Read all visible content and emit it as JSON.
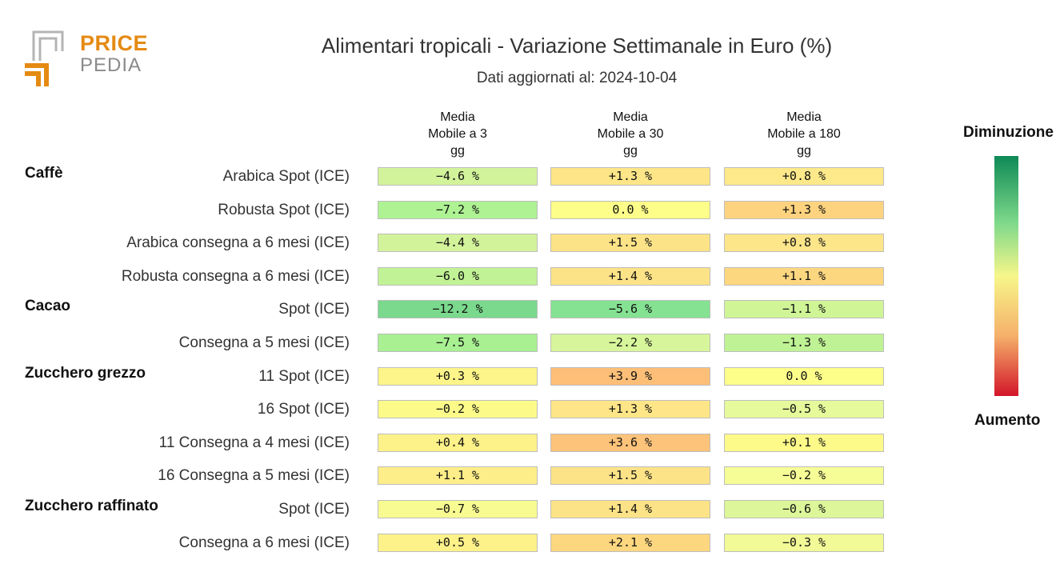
{
  "logo": {
    "word1": "PRICE",
    "word2": "PEDIA"
  },
  "colors": {
    "logo_orange": "#e58a13",
    "logo_gray": "#b5b5b5"
  },
  "chart_data": {
    "type": "table",
    "title": "Alimentari tropicali - Variazione Settimanale in Euro (%)",
    "subtitle": "Dati aggiornati al: 2024-10-04",
    "columns": [
      "Media\nMobile a 3\ngg",
      "Media\nMobile a 30\ngg",
      "Media\nMobile a 180\ngg"
    ],
    "groups": [
      {
        "name": "Caffè",
        "rows": [
          {
            "label": "Arabica Spot (ICE)",
            "values": [
              "−4.6 %",
              "+1.3 %",
              "+0.8 %"
            ],
            "colors": [
              "#d3f39b",
              "#fde588",
              "#fde98a"
            ]
          },
          {
            "label": "Robusta Spot (ICE)",
            "values": [
              "−7.2 %",
              "0.0 %",
              "+1.3 %"
            ],
            "colors": [
              "#aef293",
              "#fdfd8a",
              "#fdd37f"
            ]
          },
          {
            "label": "Arabica consegna a 6 mesi (ICE)",
            "values": [
              "−4.4 %",
              "+1.5 %",
              "+0.8 %"
            ],
            "colors": [
              "#d3f39b",
              "#fde387",
              "#fde58a"
            ]
          },
          {
            "label": "Robusta consegna a 6 mesi (ICE)",
            "values": [
              "−6.0 %",
              "+1.4 %",
              "+1.1 %"
            ],
            "colors": [
              "#c2f296",
              "#fde387",
              "#fdd780"
            ]
          }
        ]
      },
      {
        "name": "Cacao",
        "rows": [
          {
            "label": "Spot (ICE)",
            "values": [
              "−12.2 %",
              "−5.6 %",
              "−1.1 %"
            ],
            "colors": [
              "#7ad98d",
              "#84e292",
              "#cff597"
            ]
          },
          {
            "label": "Consegna a 5 mesi (ICE)",
            "values": [
              "−7.5 %",
              "−2.2 %",
              "−1.3 %"
            ],
            "colors": [
              "#a8f092",
              "#d7f69b",
              "#bff294"
            ]
          }
        ]
      },
      {
        "name": "Zucchero grezzo",
        "rows": [
          {
            "label": "11 Spot (ICE)",
            "values": [
              "+0.3 %",
              "+3.9 %",
              "0.0 %"
            ],
            "colors": [
              "#fdf589",
              "#fdbf78",
              "#fdfd8a"
            ]
          },
          {
            "label": "16 Spot (ICE)",
            "values": [
              "−0.2 %",
              "+1.3 %",
              "−0.5 %"
            ],
            "colors": [
              "#fcfb8a",
              "#fde588",
              "#e6f99b"
            ]
          },
          {
            "label": "11 Consegna a 4 mesi (ICE)",
            "values": [
              "+0.4 %",
              "+3.6 %",
              "+0.1 %"
            ],
            "colors": [
              "#fdf189",
              "#fdc37a",
              "#fdfa8a"
            ]
          },
          {
            "label": "16 Consegna a 5 mesi (ICE)",
            "values": [
              "+1.1 %",
              "+1.5 %",
              "−0.2 %"
            ],
            "colors": [
              "#fdee89",
              "#fde387",
              "#f6fd96"
            ]
          }
        ]
      },
      {
        "name": "Zucchero raffinato",
        "rows": [
          {
            "label": "Spot (ICE)",
            "values": [
              "−0.7 %",
              "+1.4 %",
              "−0.6 %"
            ],
            "colors": [
              "#f8fb91",
              "#fde387",
              "#dcf699"
            ]
          },
          {
            "label": "Consegna a 6 mesi (ICE)",
            "values": [
              "+0.5 %",
              "+2.1 %",
              "−0.3 %"
            ],
            "colors": [
              "#fdf189",
              "#fdd780",
              "#f1fa96"
            ]
          }
        ]
      }
    ],
    "legend": {
      "top": "Diminuzione",
      "bottom": "Aumento",
      "gradient": [
        "#0e8a56",
        "#7fd98b",
        "#f6f68a",
        "#f5b06a",
        "#d3162a"
      ]
    }
  }
}
